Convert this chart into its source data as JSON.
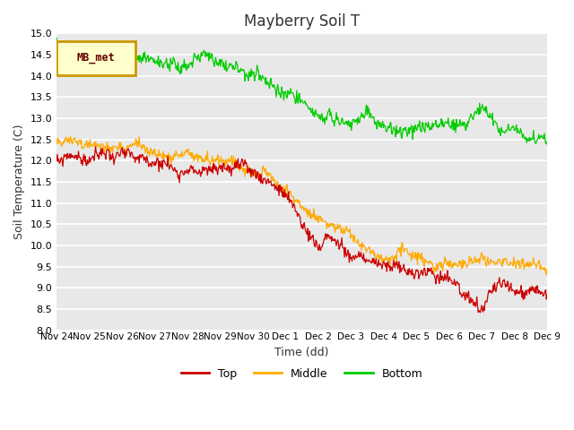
{
  "title": "Mayberry Soil T",
  "xlabel": "Time (dd)",
  "ylabel": "Soil Temperature (C)",
  "ylim": [
    8.0,
    15.0
  ],
  "yticks": [
    8.0,
    8.5,
    9.0,
    9.5,
    10.0,
    10.5,
    11.0,
    11.5,
    12.0,
    12.5,
    13.0,
    13.5,
    14.0,
    14.5,
    15.0
  ],
  "xtick_labels": [
    "Nov 24",
    "Nov 25",
    "Nov 26",
    "Nov 27",
    "Nov 28",
    "Nov 29",
    "Nov 30",
    "Dec 1",
    "Dec 2",
    "Dec 3",
    "Dec 4",
    "Dec 5",
    "Dec 6",
    "Dec 7",
    "Dec 8",
    "Dec 9"
  ],
  "legend_label": "MB_met",
  "series_labels": [
    "Top",
    "Middle",
    "Bottom"
  ],
  "colors": {
    "top": "#cc0000",
    "middle": "#ffaa00",
    "bottom": "#00cc00",
    "background": "#e8e8e8",
    "legend_box_bg": "#ffffcc",
    "legend_box_border": "#cc9900"
  },
  "n_points": 720,
  "seed": 99
}
